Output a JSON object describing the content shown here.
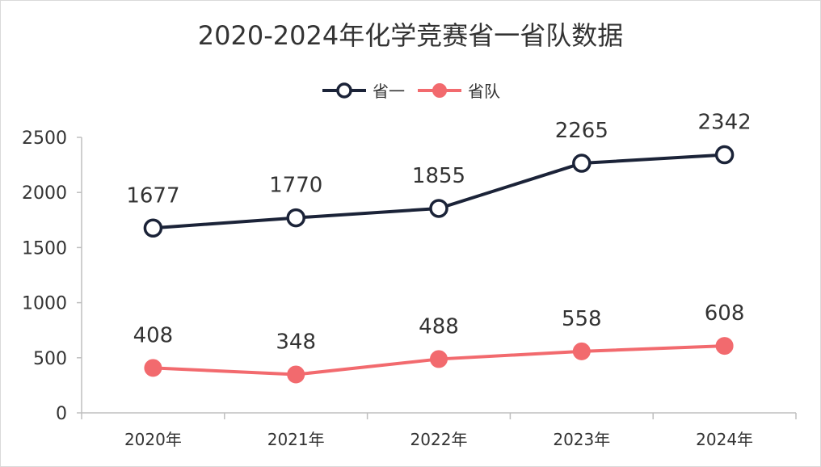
{
  "chart_data": {
    "type": "line",
    "title": "2020-2024年化学竞赛省一省队数据",
    "categories": [
      "2020年",
      "2021年",
      "2022年",
      "2023年",
      "2024年"
    ],
    "series": [
      {
        "name": "省一",
        "values": [
          1677,
          1770,
          1855,
          2265,
          2342
        ],
        "color": "#1b2338",
        "marker": "hollow-circle"
      },
      {
        "name": "省队",
        "values": [
          408,
          348,
          488,
          558,
          608
        ],
        "color": "#f26a6e",
        "marker": "filled-circle"
      }
    ],
    "ylim": [
      0,
      2500
    ],
    "yticks": [
      "0",
      "500",
      "1000",
      "1500",
      "2000",
      "2500"
    ],
    "xlabel": "",
    "ylabel": "",
    "legend": "top-center",
    "grid": false
  }
}
